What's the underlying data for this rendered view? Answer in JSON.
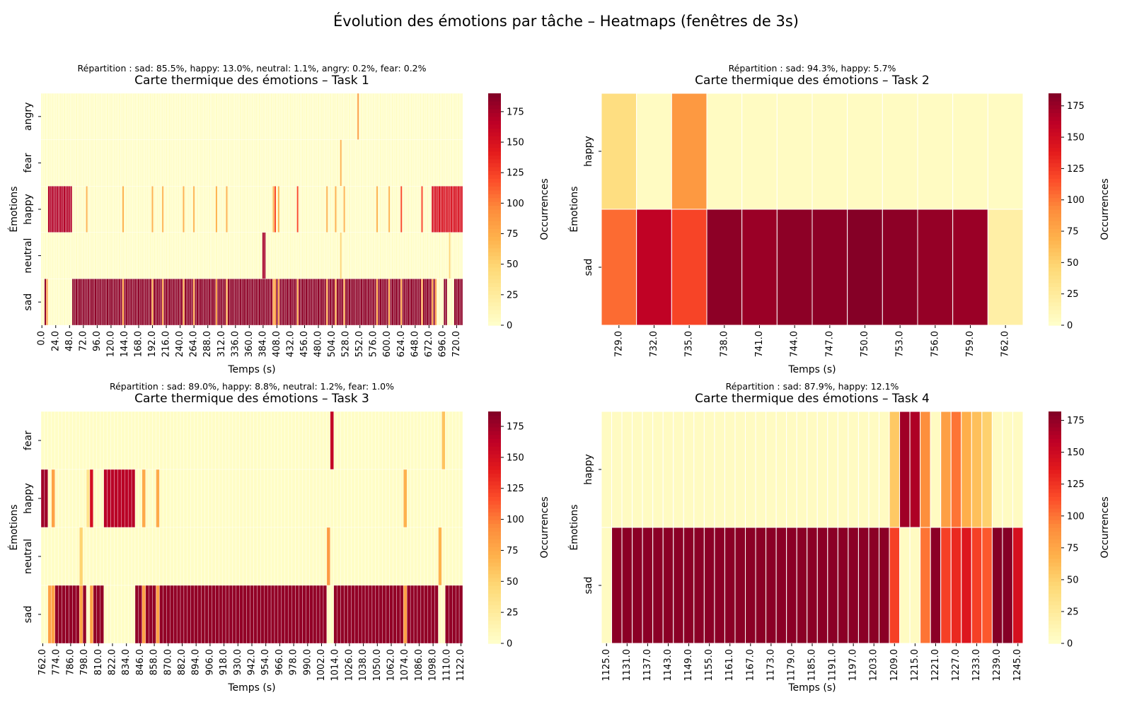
{
  "suptitle": "Évolution des émotions par tâche – Heatmaps (fenêtres de 3s)",
  "colormap": [
    "#ffffcc",
    "#ffeda0",
    "#fed976",
    "#feb24c",
    "#fd8d3c",
    "#fc4e2a",
    "#e31a1c",
    "#bd0026",
    "#800026"
  ],
  "chart_data": [
    {
      "type": "heatmap",
      "title": "Carte thermique des émotions – Task 1",
      "subtitle": "Répartition : sad: 85.5%, happy: 13.0%, neutral: 1.1%, angry: 0.2%, fear: 0.2%",
      "xlabel": "Temps (s)",
      "ylabel": "Émotions",
      "colorbar_label": "Occurrences",
      "rows": [
        "angry",
        "fear",
        "happy",
        "neutral",
        "sad"
      ],
      "x_start": 0,
      "x_step": 3,
      "n_cols": 244,
      "vmax": 190,
      "cbar_ticks": [
        0,
        25,
        50,
        75,
        100,
        125,
        150,
        175
      ],
      "x_tick_labels": [
        "0.0",
        "24.0",
        "48.0",
        "72.0",
        "96.0",
        "120.0",
        "144.0",
        "168.0",
        "192.0",
        "216.0",
        "240.0",
        "264.0",
        "288.0",
        "312.0",
        "336.0",
        "360.0",
        "384.0",
        "408.0",
        "432.0",
        "456.0",
        "480.0",
        "504.0",
        "528.0",
        "552.0",
        "576.0",
        "600.0",
        "624.0",
        "648.0",
        "672.0",
        "696.0",
        "720.0"
      ],
      "dominant_row": "sad",
      "dominant_value": 185,
      "highlights": [
        {
          "row": "happy",
          "cols": [
            4,
            5,
            6,
            7,
            8,
            9,
            10,
            11,
            12,
            13,
            14,
            15,
            16,
            17
          ],
          "value": 170
        },
        {
          "row": "happy",
          "cols": [
            26,
            47,
            64,
            70,
            82,
            88,
            101,
            107,
            134,
            137,
            165,
            170,
            175,
            194,
            201
          ],
          "value": 70
        },
        {
          "row": "happy",
          "cols": [
            135,
            148,
            208,
            220,
            226,
            228
          ],
          "value": 120
        },
        {
          "row": "happy",
          "cols": [
            227,
            229
          ],
          "value": 175
        },
        {
          "row": "happy",
          "cols": [
            226,
            227,
            228,
            229,
            230,
            231,
            232,
            233,
            234,
            235,
            236,
            237,
            238,
            239,
            240,
            241,
            242,
            243
          ],
          "value": 150
        },
        {
          "row": "angry",
          "cols": [
            183
          ],
          "value": 85
        },
        {
          "row": "fear",
          "cols": [
            173
          ],
          "value": 70
        },
        {
          "row": "neutral",
          "cols": [
            128,
            129
          ],
          "value": 175
        },
        {
          "row": "neutral",
          "cols": [
            173,
            236
          ],
          "value": 50
        }
      ],
      "sad_gaps": [
        0,
        1,
        4,
        5,
        6,
        7,
        8,
        9,
        10,
        11,
        12,
        13,
        14,
        15,
        16,
        17,
        229,
        230,
        231,
        232,
        235,
        236,
        237,
        238
      ],
      "sad_dim": [
        3,
        47,
        64,
        70,
        82,
        88,
        101,
        107,
        134,
        135,
        137,
        148,
        165,
        170,
        175,
        194,
        201,
        208,
        220,
        226,
        228
      ]
    },
    {
      "type": "heatmap",
      "title": "Carte thermique des émotions – Task 2",
      "subtitle": "Répartition : sad: 94.3%, happy: 5.7%",
      "xlabel": "Temps (s)",
      "ylabel": "Émotions",
      "colorbar_label": "Occurrences",
      "rows": [
        "happy",
        "sad"
      ],
      "x_start": 729,
      "x_step": 3,
      "n_cols": 12,
      "vmax": 185,
      "cbar_ticks": [
        0,
        25,
        50,
        75,
        100,
        125,
        150,
        175
      ],
      "x_tick_labels": [
        "729.0",
        "732.0",
        "735.0",
        "738.0",
        "741.0",
        "744.0",
        "747.0",
        "750.0",
        "753.0",
        "756.0",
        "759.0",
        "762.0"
      ],
      "matrix": [
        [
          40,
          5,
          85,
          5,
          5,
          5,
          5,
          5,
          5,
          5,
          5,
          5
        ],
        [
          105,
          160,
          120,
          180,
          175,
          180,
          180,
          183,
          180,
          177,
          175,
          20
        ]
      ]
    },
    {
      "type": "heatmap",
      "title": "Carte thermique des émotions – Task 3",
      "subtitle": "Répartition : sad: 89.0%, happy: 8.8%, neutral: 1.2%, fear: 1.0%",
      "xlabel": "Temps (s)",
      "ylabel": "Émotions",
      "colorbar_label": "Occurrences",
      "rows": [
        "fear",
        "happy",
        "neutral",
        "sad"
      ],
      "x_start": 762,
      "x_step": 3,
      "n_cols": 121,
      "vmax": 187,
      "cbar_ticks": [
        0,
        25,
        50,
        75,
        100,
        125,
        150,
        175
      ],
      "x_tick_labels": [
        "762.0",
        "774.0",
        "786.0",
        "798.0",
        "810.0",
        "822.0",
        "834.0",
        "846.0",
        "858.0",
        "870.0",
        "882.0",
        "894.0",
        "906.0",
        "918.0",
        "930.0",
        "942.0",
        "954.0",
        "966.0",
        "978.0",
        "990.0",
        "1002.0",
        "1014.0",
        "1026.0",
        "1038.0",
        "1050.0",
        "1062.0",
        "1074.0",
        "1086.0",
        "1098.0",
        "1110.0",
        "1122.0"
      ],
      "dominant_row": "sad",
      "dominant_value": 180,
      "highlights": [
        {
          "row": "fear",
          "cols": [
            83
          ],
          "value": 160
        },
        {
          "row": "fear",
          "cols": [
            115
          ],
          "value": 60
        },
        {
          "row": "happy",
          "cols": [
            0,
            1
          ],
          "value": 175
        },
        {
          "row": "happy",
          "cols": [
            3
          ],
          "value": 80
        },
        {
          "row": "happy",
          "cols": [
            13
          ],
          "value": 35
        },
        {
          "row": "happy",
          "cols": [
            14
          ],
          "value": 150
        },
        {
          "row": "happy",
          "cols": [
            18,
            19,
            20,
            21,
            22,
            23,
            24,
            25,
            26
          ],
          "value": 165
        },
        {
          "row": "happy",
          "cols": [
            29,
            33
          ],
          "value": 75
        },
        {
          "row": "happy",
          "cols": [
            104
          ],
          "value": 70
        },
        {
          "row": "neutral",
          "cols": [
            11
          ],
          "value": 50
        },
        {
          "row": "neutral",
          "cols": [
            82
          ],
          "value": 85
        },
        {
          "row": "neutral",
          "cols": [
            114
          ],
          "value": 70
        }
      ],
      "sad_gaps": [
        0,
        1,
        13,
        18,
        19,
        20,
        21,
        22,
        23,
        24,
        25,
        26,
        82,
        83,
        114,
        115
      ],
      "sad_dim": [
        2,
        3,
        11,
        14,
        29,
        33,
        104
      ]
    },
    {
      "type": "heatmap",
      "title": "Carte thermique des émotions – Task 4",
      "subtitle": "Répartition : sad: 87.9%, happy: 12.1%",
      "xlabel": "Temps (s)",
      "ylabel": "Émotions",
      "colorbar_label": "Occurrences",
      "rows": [
        "happy",
        "sad"
      ],
      "x_start": 1125,
      "x_step": 3,
      "n_cols": 41,
      "vmax": 182,
      "cbar_ticks": [
        0,
        25,
        50,
        75,
        100,
        125,
        150,
        175
      ],
      "x_tick_labels": [
        "1125.0",
        "1131.0",
        "1137.0",
        "1143.0",
        "1149.0",
        "1155.0",
        "1161.0",
        "1167.0",
        "1173.0",
        "1179.0",
        "1185.0",
        "1191.0",
        "1197.0",
        "1203.0",
        "1209.0",
        "1215.0",
        "1221.0",
        "1227.0",
        "1233.0",
        "1239.0",
        "1245.0"
      ],
      "matrix": [
        [
          5,
          5,
          5,
          5,
          5,
          5,
          5,
          5,
          5,
          5,
          5,
          5,
          5,
          5,
          5,
          5,
          5,
          5,
          5,
          5,
          5,
          5,
          5,
          5,
          5,
          5,
          5,
          5,
          55,
          170,
          165,
          90,
          5,
          80,
          100,
          70,
          60,
          50,
          5,
          5,
          5
        ],
        [
          5,
          178,
          178,
          178,
          178,
          178,
          178,
          178,
          178,
          178,
          178,
          178,
          178,
          178,
          178,
          178,
          178,
          178,
          178,
          178,
          178,
          178,
          178,
          178,
          178,
          178,
          178,
          178,
          120,
          5,
          5,
          100,
          178,
          120,
          130,
          140,
          120,
          110,
          180,
          180,
          145
        ]
      ]
    }
  ]
}
